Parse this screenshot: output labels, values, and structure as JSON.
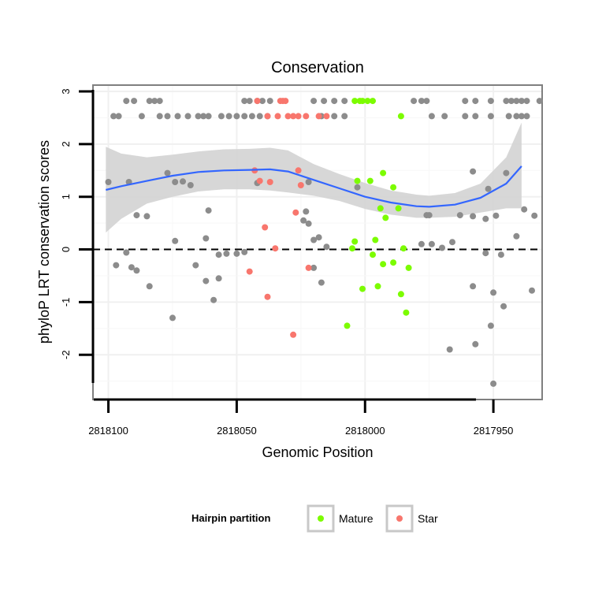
{
  "chart_data": {
    "type": "scatter",
    "title": "Conservation",
    "xlabel": "Genomic Position",
    "ylabel": "phyloP LRT conservation scores",
    "xlim": [
      2818106,
      2817931
    ],
    "ylim": [
      -2.85,
      3.12
    ],
    "x_ticks": [
      2818100,
      2818050,
      2818000,
      2817950
    ],
    "x_tick_labels": [
      "2818100",
      "2818050",
      "2818000",
      "2817950"
    ],
    "y_ticks": [
      -2,
      -1,
      0,
      1,
      2,
      3
    ],
    "y_tick_labels": [
      "-2",
      "-1",
      "0",
      "1",
      "2",
      "3"
    ],
    "reference_line": {
      "y": 0,
      "style": "dashed"
    },
    "grid": true,
    "legend": {
      "title": "Hairpin partition",
      "position": "bottom",
      "entries": [
        {
          "label": "Mature",
          "color": "#7CFC00"
        },
        {
          "label": "Star",
          "color": "#F8766D"
        }
      ]
    },
    "series": [
      {
        "name": "Other",
        "color": "#8C8C8C",
        "points": [
          [
            2818093,
            2.82
          ],
          [
            2818090,
            2.82
          ],
          [
            2818084,
            2.82
          ],
          [
            2818082,
            2.82
          ],
          [
            2818080,
            2.82
          ],
          [
            2818047,
            2.82
          ],
          [
            2818045,
            2.82
          ],
          [
            2818042,
            2.82
          ],
          [
            2818040,
            2.82
          ],
          [
            2818037,
            2.82
          ],
          [
            2818020,
            2.82
          ],
          [
            2818016,
            2.82
          ],
          [
            2818012,
            2.82
          ],
          [
            2818008,
            2.82
          ],
          [
            2817981,
            2.82
          ],
          [
            2817978,
            2.82
          ],
          [
            2817976,
            2.82
          ],
          [
            2817961,
            2.82
          ],
          [
            2817957,
            2.82
          ],
          [
            2817951,
            2.82
          ],
          [
            2817945,
            2.82
          ],
          [
            2817943,
            2.82
          ],
          [
            2817941,
            2.82
          ],
          [
            2817939,
            2.82
          ],
          [
            2817937,
            2.82
          ],
          [
            2817932,
            2.82
          ],
          [
            2818098,
            2.53
          ],
          [
            2818096,
            2.53
          ],
          [
            2818087,
            2.53
          ],
          [
            2818080,
            2.53
          ],
          [
            2818077,
            2.53
          ],
          [
            2818073,
            2.53
          ],
          [
            2818069,
            2.53
          ],
          [
            2818065,
            2.53
          ],
          [
            2818063,
            2.53
          ],
          [
            2818061,
            2.53
          ],
          [
            2818056,
            2.53
          ],
          [
            2818053,
            2.53
          ],
          [
            2818050,
            2.53
          ],
          [
            2818047,
            2.53
          ],
          [
            2818044,
            2.53
          ],
          [
            2818041,
            2.53
          ],
          [
            2818038,
            2.53
          ],
          [
            2818017,
            2.53
          ],
          [
            2818012,
            2.53
          ],
          [
            2818008,
            2.53
          ],
          [
            2817974,
            2.53
          ],
          [
            2817969,
            2.53
          ],
          [
            2817961,
            2.53
          ],
          [
            2817957,
            2.53
          ],
          [
            2817951,
            2.53
          ],
          [
            2817944,
            2.53
          ],
          [
            2817941,
            2.53
          ],
          [
            2817939,
            2.53
          ],
          [
            2817937,
            2.53
          ],
          [
            2818100,
            1.28
          ],
          [
            2818092,
            1.28
          ],
          [
            2818077,
            1.45
          ],
          [
            2818074,
            1.28
          ],
          [
            2818071,
            1.29
          ],
          [
            2818068,
            1.22
          ],
          [
            2818042,
            1.26
          ],
          [
            2818022,
            1.28
          ],
          [
            2818003,
            1.18
          ],
          [
            2817958,
            1.48
          ],
          [
            2817952,
            1.15
          ],
          [
            2817945,
            1.45
          ],
          [
            2818089,
            0.65
          ],
          [
            2818085,
            0.63
          ],
          [
            2818061,
            0.74
          ],
          [
            2817975,
            0.65
          ],
          [
            2817963,
            0.65
          ],
          [
            2817949,
            0.64
          ],
          [
            2818023,
            0.72
          ],
          [
            2817953,
            0.58
          ],
          [
            2817958,
            0.63
          ],
          [
            2817976,
            0.65
          ],
          [
            2817934,
            0.64
          ],
          [
            2817938,
            0.76
          ],
          [
            2818024,
            0.55
          ],
          [
            2818022,
            0.49
          ],
          [
            2818018,
            0.23
          ],
          [
            2817941,
            0.25
          ],
          [
            2818074,
            0.16
          ],
          [
            2818062,
            0.21
          ],
          [
            2818020,
            0.18
          ],
          [
            2817974,
            0.1
          ],
          [
            2817966,
            0.14
          ],
          [
            2817978,
            0.1
          ],
          [
            2818015,
            0.05
          ],
          [
            2817970,
            0.03
          ],
          [
            2818097,
            -0.3
          ],
          [
            2818093,
            -0.06
          ],
          [
            2818057,
            -0.1
          ],
          [
            2818054,
            -0.08
          ],
          [
            2818050,
            -0.08
          ],
          [
            2818047,
            -0.05
          ],
          [
            2817935,
            -0.78
          ],
          [
            2817947,
            -0.1
          ],
          [
            2817953,
            -0.07
          ],
          [
            2818091,
            -0.34
          ],
          [
            2818089,
            -0.4
          ],
          [
            2818084,
            -0.7
          ],
          [
            2818066,
            -0.3
          ],
          [
            2818062,
            -0.6
          ],
          [
            2818057,
            -0.55
          ],
          [
            2818059,
            -0.96
          ],
          [
            2818075,
            -1.3
          ],
          [
            2818020,
            -0.35
          ],
          [
            2818017,
            -0.63
          ],
          [
            2817958,
            -0.7
          ],
          [
            2817950,
            -0.82
          ],
          [
            2817946,
            -1.08
          ],
          [
            2817951,
            -1.45
          ],
          [
            2817957,
            -1.8
          ],
          [
            2817967,
            -1.9
          ],
          [
            2817950,
            -2.55
          ]
        ]
      },
      {
        "name": "Mature",
        "color": "#7CFC00",
        "points": [
          [
            2818004,
            2.82
          ],
          [
            2818002,
            2.82
          ],
          [
            2818001,
            2.82
          ],
          [
            2817999,
            2.82
          ],
          [
            2817997,
            2.82
          ],
          [
            2817986,
            2.53
          ],
          [
            2818003,
            1.3
          ],
          [
            2817998,
            1.3
          ],
          [
            2817993,
            1.45
          ],
          [
            2817989,
            1.18
          ],
          [
            2817994,
            0.78
          ],
          [
            2817992,
            0.6
          ],
          [
            2817987,
            0.78
          ],
          [
            2818005,
            0.02
          ],
          [
            2818004,
            0.15
          ],
          [
            2817996,
            0.18
          ],
          [
            2817985,
            0.02
          ],
          [
            2817997,
            -0.1
          ],
          [
            2817993,
            -0.28
          ],
          [
            2817989,
            -0.25
          ],
          [
            2817983,
            -0.35
          ],
          [
            2818001,
            -0.75
          ],
          [
            2817995,
            -0.7
          ],
          [
            2817986,
            -0.85
          ],
          [
            2817984,
            -1.2
          ],
          [
            2818007,
            -1.45
          ]
        ]
      },
      {
        "name": "Star",
        "color": "#F8766D",
        "points": [
          [
            2818042,
            2.82
          ],
          [
            2818033,
            2.82
          ],
          [
            2818032,
            2.82
          ],
          [
            2818031,
            2.82
          ],
          [
            2818038,
            2.53
          ],
          [
            2818034,
            2.53
          ],
          [
            2818030,
            2.53
          ],
          [
            2818028,
            2.53
          ],
          [
            2818026,
            2.53
          ],
          [
            2818023,
            2.53
          ],
          [
            2818018,
            2.53
          ],
          [
            2818015,
            2.53
          ],
          [
            2818043,
            1.5
          ],
          [
            2818041,
            1.3
          ],
          [
            2818037,
            1.28
          ],
          [
            2818026,
            1.5
          ],
          [
            2818025,
            1.22
          ],
          [
            2818027,
            0.7
          ],
          [
            2818039,
            0.42
          ],
          [
            2818035,
            0.02
          ],
          [
            2818045,
            -0.42
          ],
          [
            2818038,
            -0.9
          ],
          [
            2818022,
            -0.35
          ],
          [
            2818028,
            -1.62
          ]
        ]
      }
    ],
    "smooth_line": {
      "x": [
        2818101,
        2818095,
        2818085,
        2818075,
        2818065,
        2818055,
        2818045,
        2818037,
        2818030,
        2818020,
        2818010,
        2818000,
        2817990,
        2817980,
        2817975,
        2817965,
        2817955,
        2817945,
        2817939
      ],
      "y": [
        1.13,
        1.2,
        1.3,
        1.4,
        1.47,
        1.5,
        1.51,
        1.52,
        1.48,
        1.32,
        1.16,
        1.0,
        0.89,
        0.82,
        0.81,
        0.85,
        0.98,
        1.25,
        1.58
      ],
      "ci_upper": [
        1.95,
        1.82,
        1.75,
        1.8,
        1.86,
        1.9,
        1.91,
        1.93,
        1.88,
        1.62,
        1.43,
        1.26,
        1.12,
        1.04,
        1.02,
        1.07,
        1.25,
        1.75,
        2.41
      ],
      "ci_lower": [
        0.32,
        0.58,
        0.87,
        1.0,
        1.1,
        1.14,
        1.14,
        1.12,
        1.08,
        1.02,
        0.92,
        0.77,
        0.66,
        0.6,
        0.6,
        0.62,
        0.7,
        0.78,
        0.78
      ],
      "color": "#3366FF",
      "band_color": "#D3D3D3"
    }
  }
}
